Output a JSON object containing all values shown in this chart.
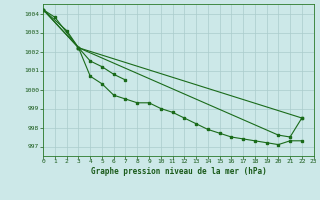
{
  "title": "Graphe pression niveau de la mer (hPa)",
  "background_color": "#cce8e8",
  "grid_color": "#aacccc",
  "line_color": "#1a6b1a",
  "xlim": [
    0,
    23
  ],
  "ylim": [
    996.5,
    1004.5
  ],
  "yticks": [
    997,
    998,
    999,
    1000,
    1001,
    1002,
    1003,
    1004
  ],
  "xticks": [
    0,
    1,
    2,
    3,
    4,
    5,
    6,
    7,
    8,
    9,
    10,
    11,
    12,
    13,
    14,
    15,
    16,
    17,
    18,
    19,
    20,
    21,
    22,
    23
  ],
  "series_data": [
    {
      "x": [
        0,
        1,
        3,
        4,
        5,
        6,
        7,
        8,
        9,
        10,
        11,
        12,
        13,
        14,
        15,
        16,
        17,
        18,
        19,
        20,
        21,
        22
      ],
      "y": [
        1004.2,
        1003.8,
        1002.2,
        1000.7,
        1000.3,
        999.7,
        999.5,
        999.3,
        999.3,
        999.0,
        998.8,
        998.5,
        998.2,
        997.9,
        997.7,
        997.5,
        997.4,
        997.3,
        997.2,
        997.1,
        997.3,
        997.3
      ]
    },
    {
      "x": [
        0,
        2,
        3,
        4,
        5,
        6,
        7
      ],
      "y": [
        1004.2,
        1003.1,
        1002.2,
        1001.5,
        1001.2,
        1000.8,
        1000.5
      ]
    },
    {
      "x": [
        0,
        3,
        20,
        21,
        22
      ],
      "y": [
        1004.2,
        1002.2,
        997.6,
        997.5,
        998.5
      ]
    },
    {
      "x": [
        0,
        3,
        22
      ],
      "y": [
        1004.2,
        1002.2,
        998.5
      ]
    }
  ]
}
